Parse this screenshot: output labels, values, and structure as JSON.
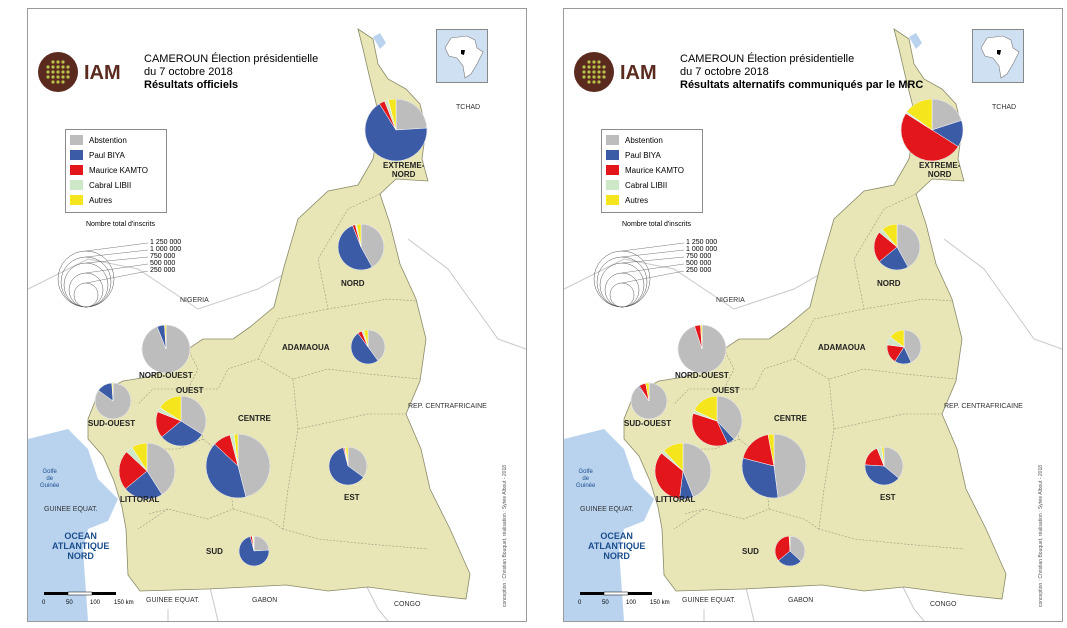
{
  "colors": {
    "abstention": "#bdbdbd",
    "biya": "#3b5ba7",
    "kamto": "#e3161b",
    "libii": "#cde7c7",
    "autres": "#f4e51c",
    "land": "#e8e6b6",
    "neighbor": "#ffffff",
    "sea": "#b9d3ef",
    "border": "#8a8a6a"
  },
  "icons": {
    "logo": "iam-logo-icon",
    "inset": "africa-locator-map-icon"
  },
  "legend_items": [
    {
      "key": "abstention",
      "label": "Abstention"
    },
    {
      "key": "biya",
      "label": "Paul BIYA"
    },
    {
      "key": "kamto",
      "label": "Maurice KAMTO"
    },
    {
      "key": "libii",
      "label": "Cabral LIBII"
    },
    {
      "key": "autres",
      "label": "Autres"
    }
  ],
  "size_legend": {
    "title": "Nombre total d'inscrits",
    "values": [
      "1 250 000",
      "1 000 000",
      "750 000",
      "500 000",
      "250 000"
    ]
  },
  "neighbors": {
    "tchad": "TCHAD",
    "nigeria": "NIGERIA",
    "rca": "REP. CENTRAFRICAINE",
    "guinee_equat_s": "GUINEE EQUAT.",
    "gabon": "GABON",
    "congo": "CONGO",
    "guinee_equat_w": "GUINEE EQUAT."
  },
  "sea": {
    "ocean": [
      "OCEAN",
      "ATLANTIQUE",
      "NORD"
    ],
    "gulf": [
      "Golfe",
      "de",
      "Guinée"
    ]
  },
  "scale": {
    "ticks": [
      "0",
      "50",
      "100",
      "150 km"
    ]
  },
  "credit": "conception : Christian Bouquet, réalisation : Sylvie Albout - 2018",
  "panels": [
    {
      "title1": "CAMEROUN Élection présidentielle",
      "title2": "du 7 octobre 2018",
      "title3": "Résultats officiels",
      "regions": [
        {
          "name": "EXTREME-NORD",
          "label": [
            "EXTREME-",
            "NORD"
          ],
          "shares": {
            "abstention": 0.24,
            "biya": 0.67,
            "kamto": 0.03,
            "libii": 0.02,
            "autres": 0.04
          }
        },
        {
          "name": "NORD",
          "label": [
            "NORD"
          ],
          "shares": {
            "abstention": 0.42,
            "biya": 0.52,
            "kamto": 0.02,
            "libii": 0.01,
            "autres": 0.03
          }
        },
        {
          "name": "ADAMAOUA",
          "label": [
            "ADAMAOUA"
          ],
          "shares": {
            "abstention": 0.4,
            "biya": 0.5,
            "kamto": 0.04,
            "libii": 0.02,
            "autres": 0.04
          }
        },
        {
          "name": "NORD-OUEST",
          "label": [
            "NORD-OUEST"
          ],
          "shares": {
            "abstention": 0.94,
            "biya": 0.05,
            "kamto": 0.0,
            "libii": 0.0,
            "autres": 0.01
          }
        },
        {
          "name": "SUD-OUEST",
          "label": [
            "SUD-OUEST"
          ],
          "shares": {
            "abstention": 0.85,
            "biya": 0.14,
            "kamto": 0.0,
            "libii": 0.0,
            "autres": 0.01
          }
        },
        {
          "name": "OUEST",
          "label": [
            "OUEST"
          ],
          "shares": {
            "abstention": 0.34,
            "biya": 0.3,
            "kamto": 0.17,
            "libii": 0.03,
            "autres": 0.16
          }
        },
        {
          "name": "LITTORAL",
          "label": [
            "LITTORAL"
          ],
          "shares": {
            "abstention": 0.41,
            "biya": 0.23,
            "kamto": 0.23,
            "libii": 0.04,
            "autres": 0.09
          }
        },
        {
          "name": "CENTRE",
          "label": [
            "CENTRE"
          ],
          "shares": {
            "abstention": 0.46,
            "biya": 0.41,
            "kamto": 0.09,
            "libii": 0.02,
            "autres": 0.02
          }
        },
        {
          "name": "EST",
          "label": [
            "EST"
          ],
          "shares": {
            "abstention": 0.35,
            "biya": 0.61,
            "kamto": 0.01,
            "libii": 0.01,
            "autres": 0.02
          }
        },
        {
          "name": "SUD",
          "label": [
            "SUD"
          ],
          "shares": {
            "abstention": 0.24,
            "biya": 0.72,
            "kamto": 0.02,
            "libii": 0.01,
            "autres": 0.01
          }
        }
      ]
    },
    {
      "title1": "CAMEROUN Élection présidentielle",
      "title2": "du 7 octobre 2018",
      "title3": "Résultats alternatifs communiqués par le MRC",
      "regions": [
        {
          "name": "EXTREME-NORD",
          "label": [
            "EXTREME-",
            "NORD"
          ],
          "shares": {
            "abstention": 0.2,
            "biya": 0.14,
            "kamto": 0.5,
            "libii": 0.01,
            "autres": 0.15
          }
        },
        {
          "name": "NORD",
          "label": [
            "NORD"
          ],
          "shares": {
            "abstention": 0.42,
            "biya": 0.22,
            "kamto": 0.22,
            "libii": 0.03,
            "autres": 0.11
          }
        },
        {
          "name": "ADAMAOUA",
          "label": [
            "ADAMAOUA"
          ],
          "shares": {
            "abstention": 0.43,
            "biya": 0.16,
            "kamto": 0.18,
            "libii": 0.08,
            "autres": 0.15
          }
        },
        {
          "name": "NORD-OUEST",
          "label": [
            "NORD-OUEST"
          ],
          "shares": {
            "abstention": 0.95,
            "biya": 0.0,
            "kamto": 0.04,
            "libii": 0.0,
            "autres": 0.01
          }
        },
        {
          "name": "SUD-OUEST",
          "label": [
            "SUD-OUEST"
          ],
          "shares": {
            "abstention": 0.9,
            "biya": 0.01,
            "kamto": 0.06,
            "libii": 0.0,
            "autres": 0.03
          }
        },
        {
          "name": "OUEST",
          "label": [
            "OUEST"
          ],
          "shares": {
            "abstention": 0.38,
            "biya": 0.05,
            "kamto": 0.37,
            "libii": 0.02,
            "autres": 0.18
          }
        },
        {
          "name": "LITTORAL",
          "label": [
            "LITTORAL"
          ],
          "shares": {
            "abstention": 0.44,
            "biya": 0.08,
            "kamto": 0.34,
            "libii": 0.02,
            "autres": 0.12
          }
        },
        {
          "name": "CENTRE",
          "label": [
            "CENTRE"
          ],
          "shares": {
            "abstention": 0.48,
            "biya": 0.31,
            "kamto": 0.18,
            "libii": 0.0,
            "autres": 0.03
          }
        },
        {
          "name": "EST",
          "label": [
            "EST"
          ],
          "shares": {
            "abstention": 0.36,
            "biya": 0.4,
            "kamto": 0.18,
            "libii": 0.04,
            "autres": 0.02
          }
        },
        {
          "name": "SUD",
          "label": [
            "SUD"
          ],
          "shares": {
            "abstention": 0.37,
            "biya": 0.27,
            "kamto": 0.35,
            "libii": 0.0,
            "autres": 0.01
          }
        }
      ]
    }
  ]
}
